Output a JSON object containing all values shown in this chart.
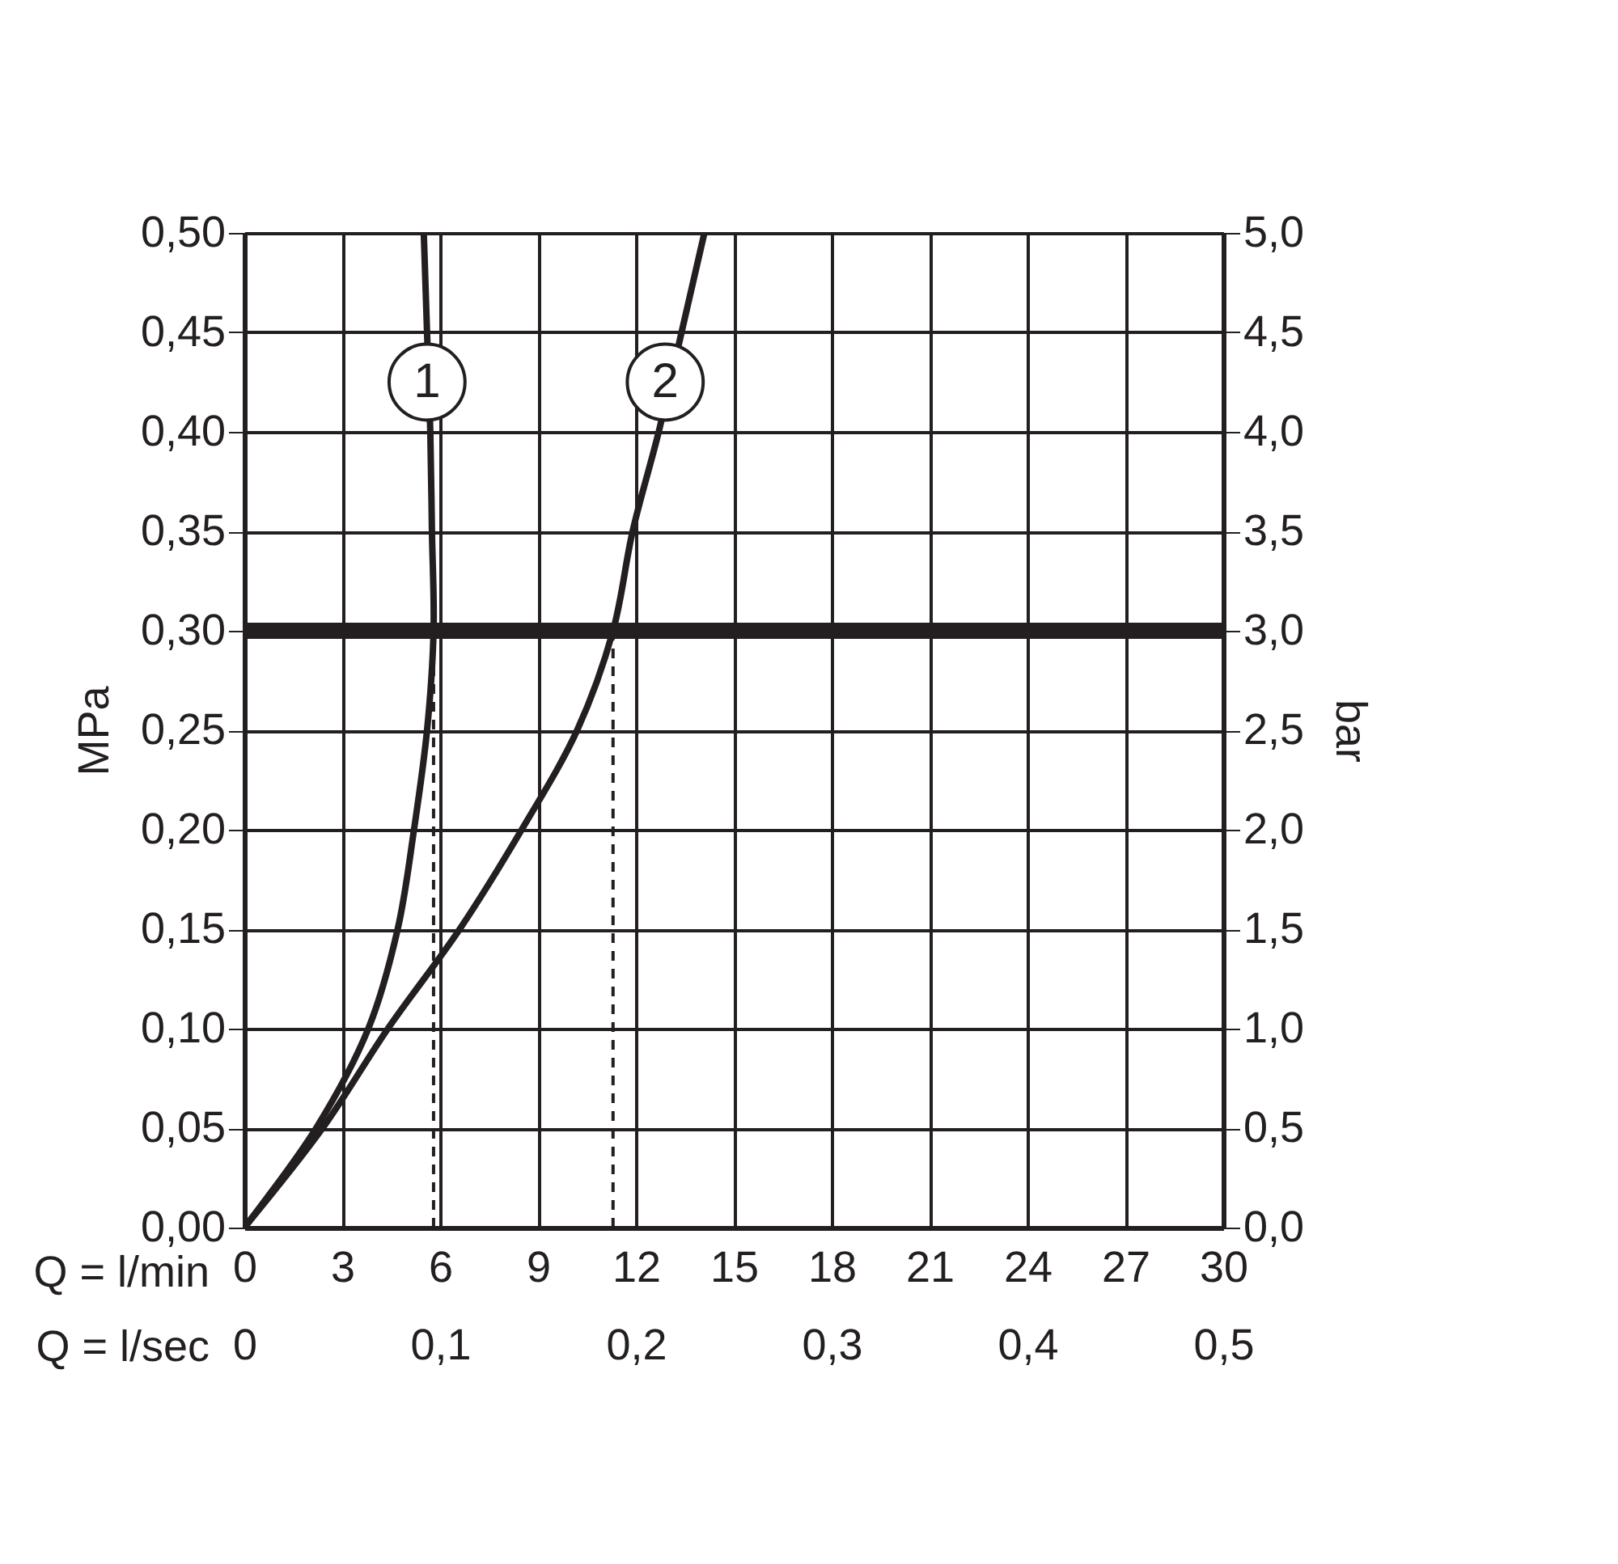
{
  "chart_data": {
    "type": "line",
    "xlabel": "Q = l/min",
    "ylabel": "MPa",
    "y2label": "bar",
    "x2label": "Q = l/sec",
    "xlim": [
      0,
      30
    ],
    "xticks": [
      0,
      3,
      6,
      9,
      12,
      15,
      18,
      21,
      24,
      27,
      30
    ],
    "ylim": [
      0,
      0.5
    ],
    "yticks": [
      {
        "value": 0,
        "label": "0,00"
      },
      {
        "value": 0.05,
        "label": "0,05"
      },
      {
        "value": 0.1,
        "label": "0,10"
      },
      {
        "value": 0.15,
        "label": "0,15"
      },
      {
        "value": 0.2,
        "label": "0,20"
      },
      {
        "value": 0.25,
        "label": "0,25"
      },
      {
        "value": 0.3,
        "label": "0,30"
      },
      {
        "value": 0.35,
        "label": "0,35"
      },
      {
        "value": 0.4,
        "label": "0,40"
      },
      {
        "value": 0.45,
        "label": "0,45"
      },
      {
        "value": 0.5,
        "label": "0,50"
      }
    ],
    "y2lim": [
      0,
      5
    ],
    "y2ticks": [
      {
        "value": 0,
        "label": "0,0"
      },
      {
        "value": 0.5,
        "label": "0,5"
      },
      {
        "value": 1,
        "label": "1,0"
      },
      {
        "value": 1.5,
        "label": "1,5"
      },
      {
        "value": 2,
        "label": "2,0"
      },
      {
        "value": 2.5,
        "label": "2,5"
      },
      {
        "value": 3,
        "label": "3,0"
      },
      {
        "value": 3.5,
        "label": "3,5"
      },
      {
        "value": 4,
        "label": "4,0"
      },
      {
        "value": 4.5,
        "label": "4,5"
      },
      {
        "value": 5,
        "label": "5,0"
      }
    ],
    "x2lim": [
      0,
      0.5
    ],
    "x2ticks": [
      0,
      {
        "value": 0.1,
        "label": "0,1"
      },
      {
        "value": 0.2,
        "label": "0,2"
      },
      {
        "value": 0.3,
        "label": "0,3"
      },
      {
        "value": 0.4,
        "label": "0,4"
      },
      {
        "value": 0.5,
        "label": "0,5"
      }
    ],
    "grid": true,
    "line_style": "solid",
    "series": [
      {
        "color": "#231f20",
        "x": [
          0,
          2.2,
          3.8,
          4.7,
          5.2,
          5.6,
          5.8,
          5.75,
          5.7,
          5.6,
          5.5
        ],
        "values": [
          0,
          0.05,
          0.1,
          0.15,
          0.2,
          0.25,
          0.3,
          0.35,
          0.4,
          0.45,
          0.5
        ]
      },
      {
        "color": "#231f20",
        "x": [
          0,
          2.4,
          4.4,
          6.6,
          8.5,
          10.2,
          11.3,
          11.9,
          12.7,
          13.4,
          14.1
        ],
        "values": [
          0,
          0.05,
          0.1,
          0.15,
          0.2,
          0.25,
          0.3,
          0.35,
          0.4,
          0.45,
          0.5
        ]
      },
      {
        "color": "#231f20",
        "line_style": "dashed",
        "x": [
          5.8,
          5.8
        ],
        "values": [
          0,
          0.3
        ]
      },
      {
        "color": "#231f20",
        "line_style": "dashed",
        "x": [
          11.3,
          11.3
        ],
        "values": [
          0,
          0.3
        ]
      }
    ],
    "ref_lines": [
      {
        "axis": "y",
        "value": 0.3,
        "color": "#231f20"
      }
    ],
    "annotations": [
      {
        "text": "1",
        "x": 5.6,
        "y": 0.425
      },
      {
        "text": "2",
        "x": 12.9,
        "y": 0.425
      }
    ]
  }
}
